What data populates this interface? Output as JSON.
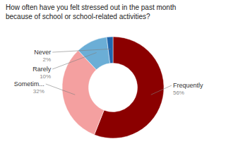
{
  "chart_data": {
    "type": "donut",
    "title": "How often have you felt stressed out in the past month\nbecause of school or school-related activities?",
    "categories": [
      "Frequently",
      "Sometim...",
      "Rarely",
      "Never"
    ],
    "values": [
      56,
      32,
      10,
      2
    ],
    "value_labels": [
      "56%",
      "32%",
      "10%",
      "2%"
    ],
    "colors": [
      "#8B0000",
      "#F4A0A0",
      "#6BAED6",
      "#2166AC"
    ],
    "data_labels": true
  }
}
